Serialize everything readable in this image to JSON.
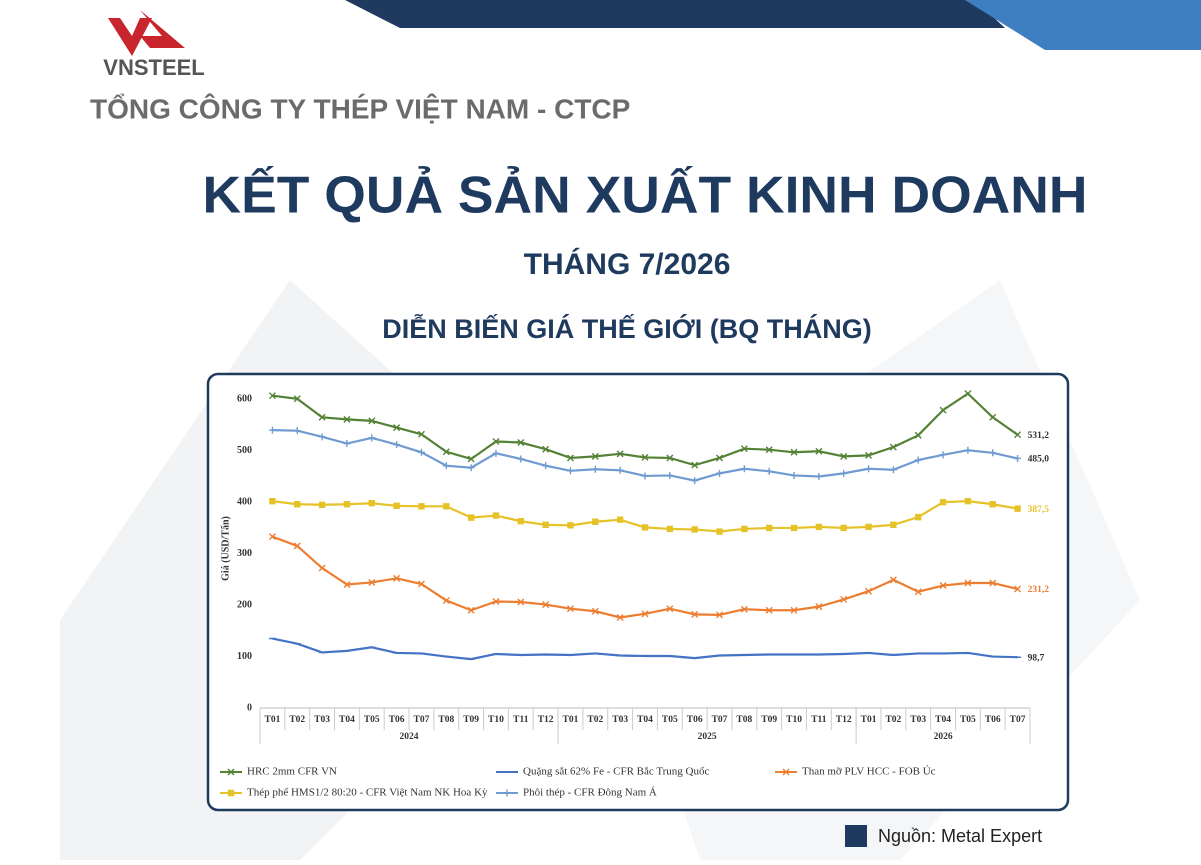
{
  "header": {
    "brand": "VNSTEEL",
    "company": "TỔNG CÔNG TY THÉP VIỆT NAM - CTCP"
  },
  "report": {
    "title": "KẾT QUẢ SẢN XUẤT KINH DOANH",
    "period": "THÁNG 7/2026"
  },
  "chart_data": {
    "type": "line",
    "title": "DIỄN BIẾN GIÁ THẾ GIỚI (BQ THÁNG)",
    "y_label": "Giá (USD/Tấn)",
    "category_groups": [
      {
        "name": "2024",
        "categories": [
          "T01",
          "T02",
          "T03",
          "T04",
          "T05",
          "T06",
          "T07",
          "T08",
          "T09",
          "T10",
          "T11",
          "T12"
        ]
      },
      {
        "name": "2025",
        "categories": [
          "T01",
          "T02",
          "T03",
          "T04",
          "T05",
          "T06",
          "T07",
          "T08",
          "T09",
          "T10",
          "T11",
          "T12"
        ]
      },
      {
        "name": "2026",
        "categories": [
          "T01",
          "T02",
          "T03",
          "T04",
          "T05",
          "T06",
          "T07"
        ]
      }
    ],
    "ylim": [
      0,
      620
    ],
    "yticks": [
      0,
      100,
      200,
      300,
      400,
      500,
      600
    ],
    "grid": false,
    "legend": "bottom",
    "series": [
      {
        "name": "HRC 2mm CFR VN",
        "color": "#548235",
        "marker": "x",
        "values": [
          607,
          601,
          565,
          561,
          558,
          545,
          532,
          498,
          484,
          518,
          516,
          503,
          486,
          489,
          494,
          487,
          486,
          472,
          486,
          504,
          502,
          497,
          499,
          489,
          491,
          507,
          530,
          579,
          611,
          565,
          531.2
        ],
        "value_labels": [
          null,
          null,
          null,
          null,
          null,
          null,
          null,
          null,
          null,
          null,
          null,
          null,
          null,
          null,
          null,
          null,
          null,
          null,
          null,
          null,
          null,
          null,
          null,
          null,
          null,
          null,
          null,
          null,
          null,
          null,
          "531,2"
        ]
      },
      {
        "name": "Quặng sắt 62% Fe - CFR Bắc Trung Quốc",
        "color": "#4472c4",
        "marker": "dash",
        "values": [
          135,
          125,
          108,
          111,
          118,
          107,
          106,
          100,
          95,
          105,
          103,
          104,
          103,
          106,
          102,
          101,
          101,
          97,
          102,
          103,
          104,
          104,
          104,
          105,
          107,
          103,
          106,
          106,
          107,
          100,
          98.7
        ],
        "value_labels": [
          null,
          null,
          null,
          null,
          null,
          null,
          null,
          null,
          null,
          null,
          null,
          null,
          null,
          null,
          null,
          null,
          null,
          null,
          null,
          null,
          null,
          null,
          null,
          null,
          null,
          null,
          null,
          null,
          null,
          null,
          "98,7"
        ]
      },
      {
        "name": "Than mỡ PLV HCC - FOB Úc",
        "color": "#ed7d31",
        "marker": "x",
        "values": [
          333,
          315,
          272,
          240,
          244,
          252,
          241,
          209,
          190,
          207,
          206,
          201,
          193,
          188,
          176,
          183,
          193,
          182,
          181,
          192,
          190,
          190,
          197,
          211,
          227,
          249,
          226,
          238,
          243,
          243,
          231.2
        ],
        "value_labels": [
          null,
          null,
          null,
          null,
          null,
          null,
          null,
          null,
          null,
          null,
          null,
          null,
          null,
          null,
          null,
          null,
          null,
          null,
          null,
          null,
          null,
          null,
          null,
          null,
          null,
          null,
          null,
          null,
          null,
          null,
          "231,2"
        ]
      },
      {
        "name": "Thép phế HMS1/2 80:20 - CFR Việt Nam NK Hoa Kỳ",
        "color": "#e6c229",
        "marker": "square",
        "values": [
          402,
          396,
          395,
          396,
          398,
          393,
          392,
          392,
          370,
          374,
          363,
          356,
          355,
          362,
          366,
          351,
          348,
          347,
          343,
          348,
          350,
          350,
          352,
          350,
          352,
          356,
          371,
          400,
          402,
          396,
          387.5
        ],
        "value_labels": [
          null,
          null,
          null,
          null,
          null,
          null,
          null,
          null,
          null,
          null,
          null,
          null,
          null,
          null,
          null,
          null,
          null,
          null,
          null,
          null,
          null,
          null,
          null,
          null,
          null,
          null,
          null,
          null,
          null,
          null,
          "387,5"
        ]
      },
      {
        "name": "Phôi thép - CFR Đông Nam Á",
        "color": "#6f9bd1",
        "marker": "plus",
        "values": [
          540,
          539,
          527,
          514,
          525,
          512,
          497,
          471,
          467,
          495,
          484,
          471,
          461,
          464,
          462,
          451,
          452,
          442,
          456,
          465,
          460,
          452,
          450,
          456,
          465,
          463,
          482,
          492,
          501,
          496,
          485.0
        ],
        "value_labels": [
          null,
          null,
          null,
          null,
          null,
          null,
          null,
          null,
          null,
          null,
          null,
          null,
          null,
          null,
          null,
          null,
          null,
          null,
          null,
          null,
          null,
          null,
          null,
          null,
          null,
          null,
          null,
          null,
          null,
          null,
          "485,0"
        ]
      }
    ]
  },
  "source": "Nguồn: Metal Expert"
}
